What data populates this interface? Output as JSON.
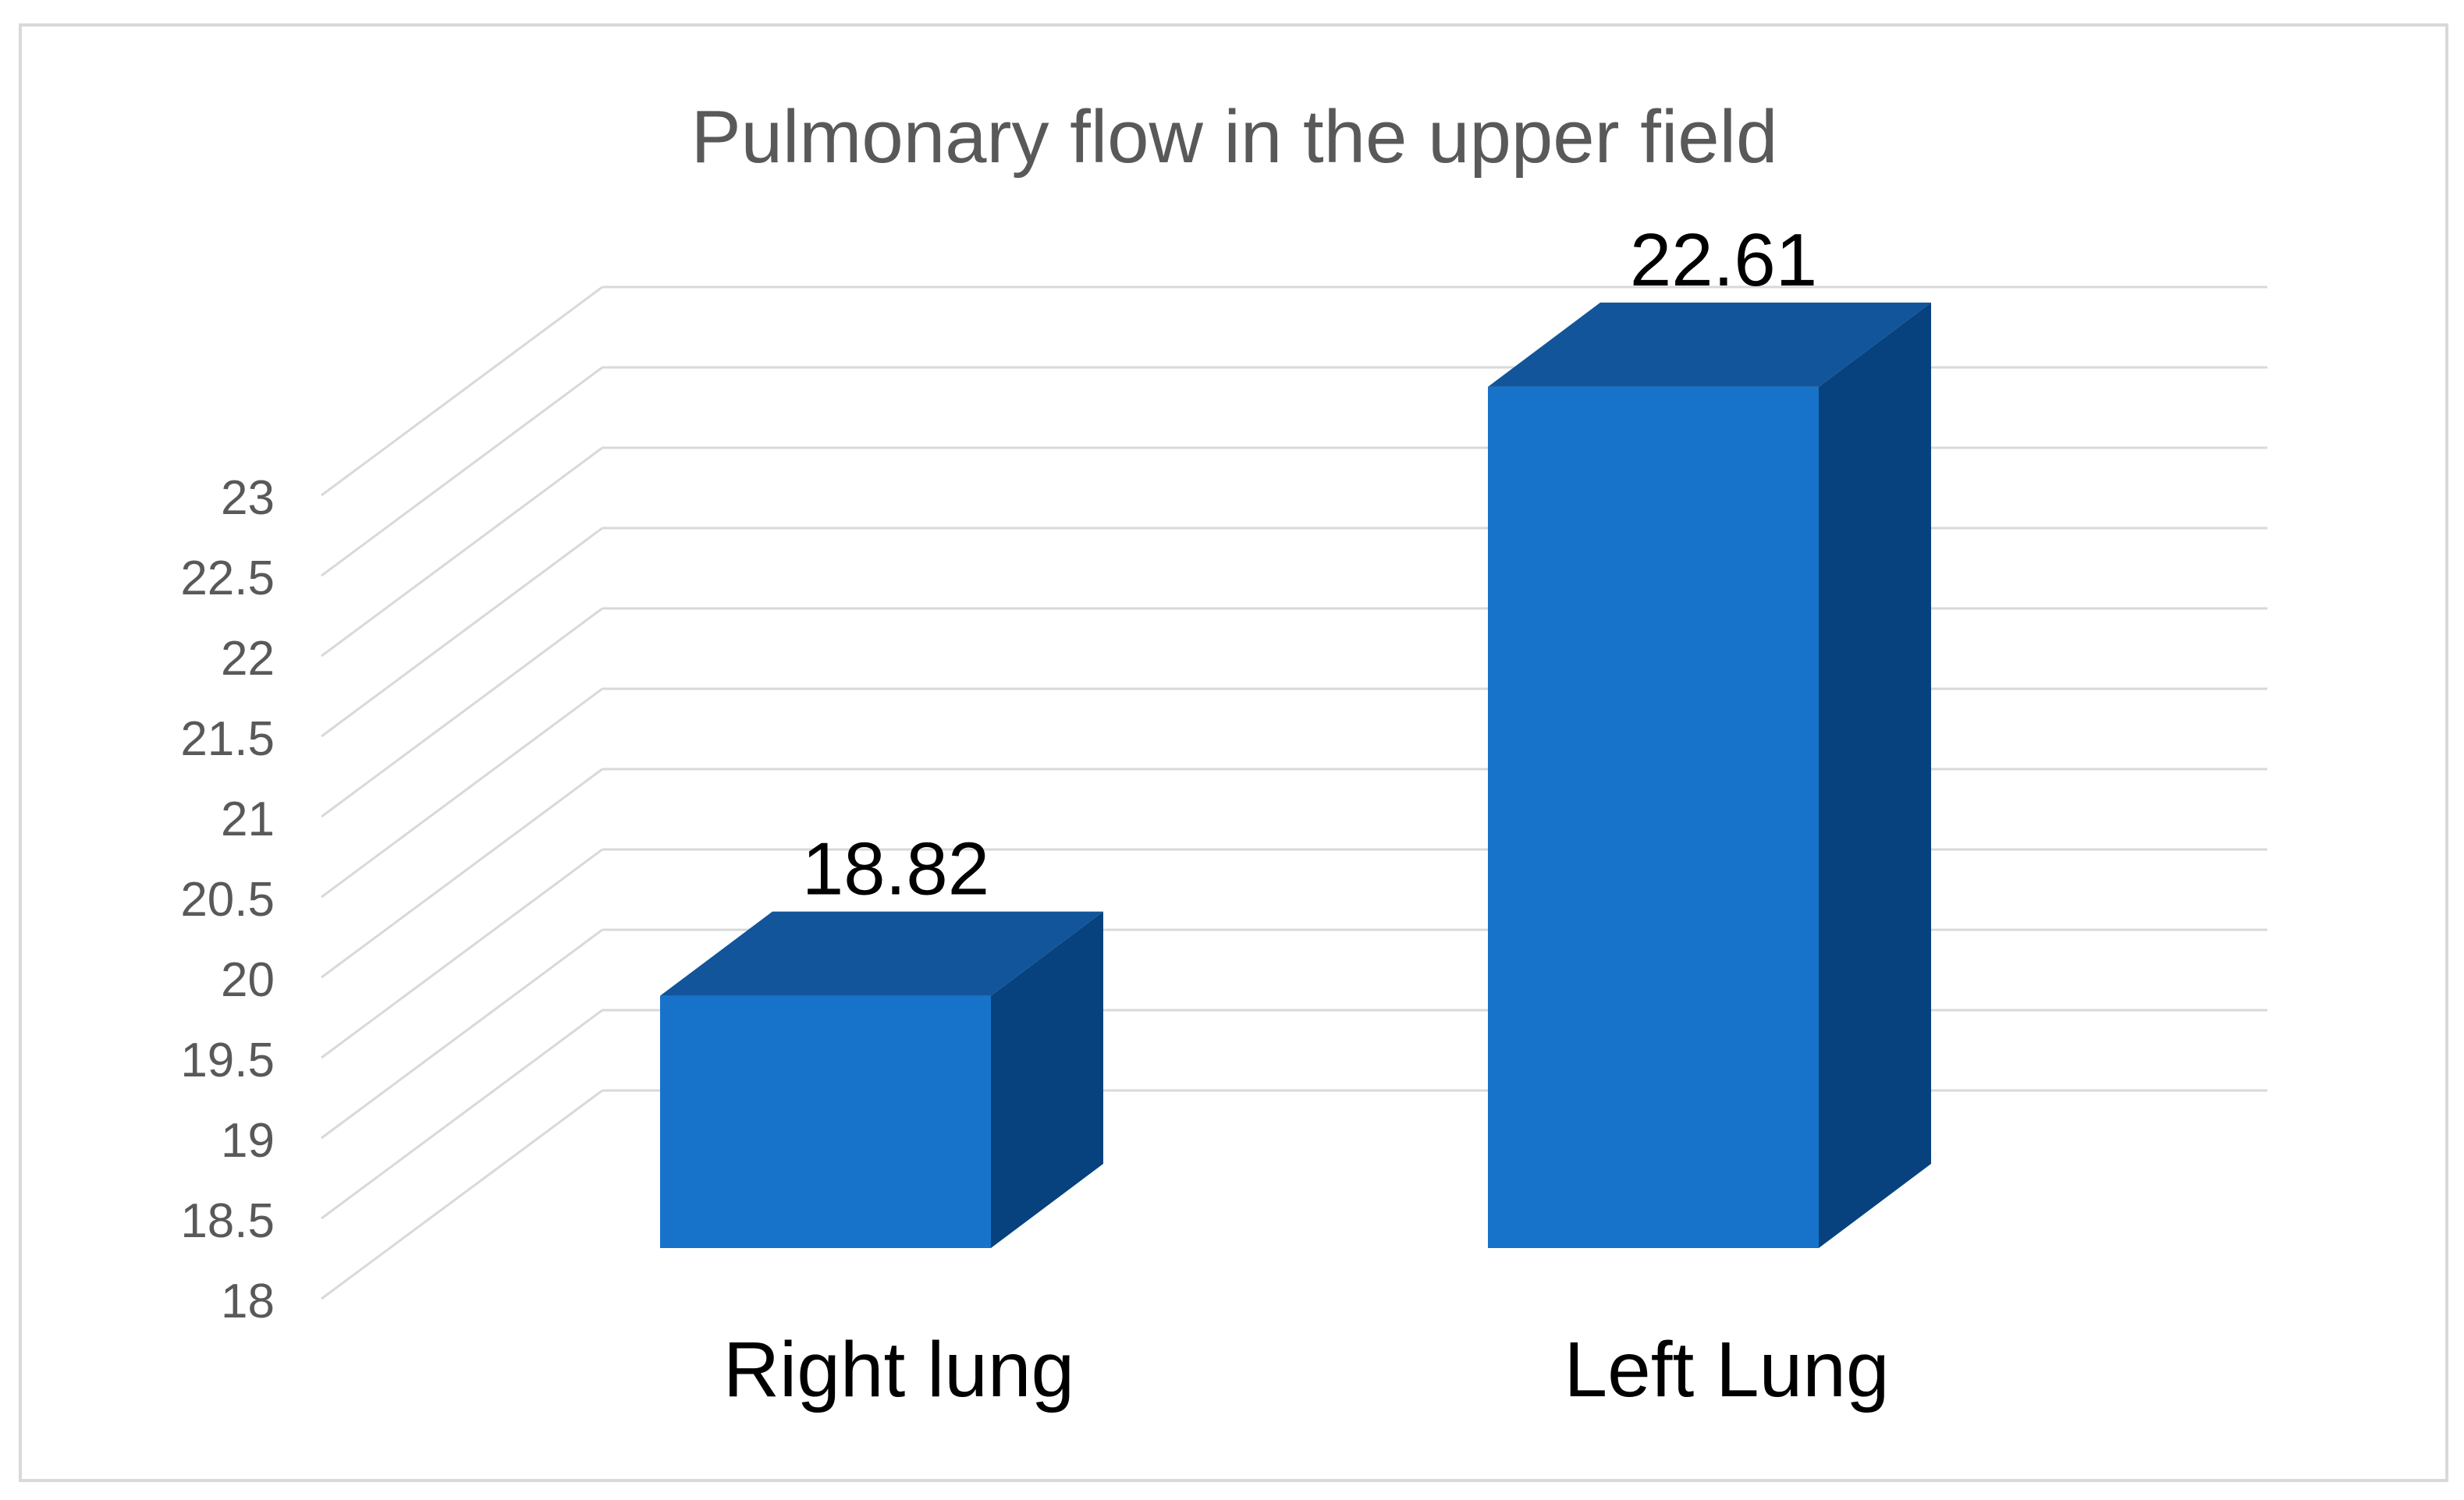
{
  "chart_data": {
    "type": "bar",
    "style": "3d-column",
    "title": "Pulmonary flow in the upper field",
    "xlabel": "",
    "ylabel": "",
    "categories": [
      "Right lung",
      "Left Lung"
    ],
    "series": [
      {
        "values": [
          18.82,
          22.61
        ]
      }
    ],
    "data_labels": [
      "18.82",
      "22.61"
    ],
    "yticks": [
      "18",
      "18.5",
      "19",
      "19.5",
      "20",
      "20.5",
      "21",
      "21.5",
      "22",
      "22.5",
      "23"
    ],
    "ylim": [
      18,
      23
    ],
    "grid": true,
    "legend": "none",
    "colors": {
      "bar_front": "#1773c9",
      "bar_top": "#12559a",
      "bar_side": "#07427f",
      "grid": "#d9d9d9",
      "title": "#595959",
      "tick": "#595959",
      "label": "#000000",
      "border": "#d9d9d9"
    }
  }
}
